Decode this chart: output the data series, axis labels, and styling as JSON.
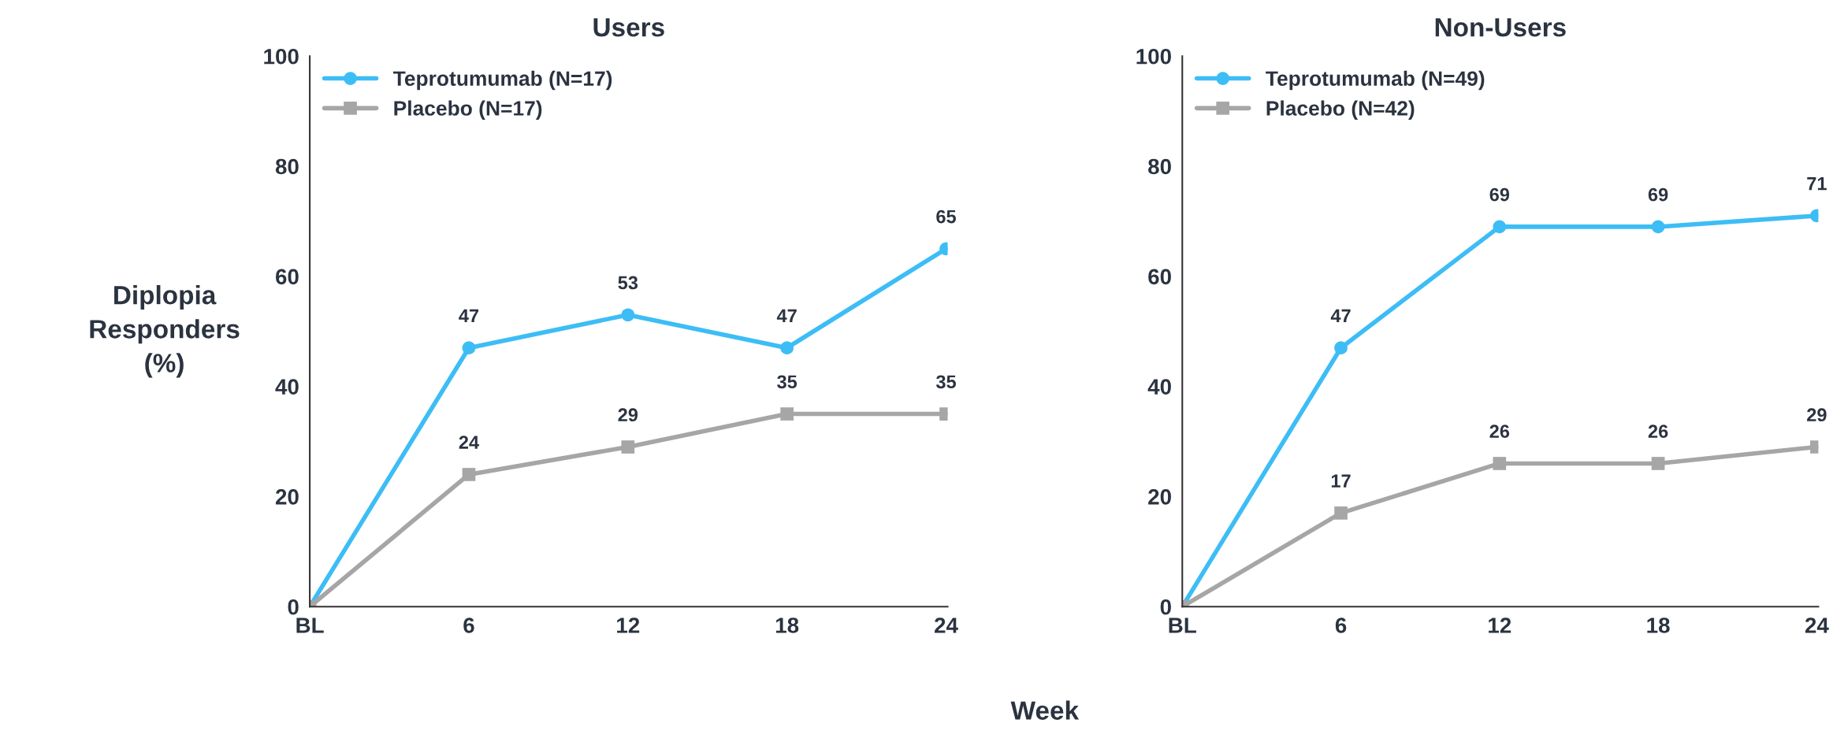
{
  "chart_data": [
    {
      "type": "line",
      "title": "Users",
      "ylabel": "Diplopia\nResponders\n(%)",
      "xlabel": "Week",
      "categories": [
        "BL",
        "6",
        "12",
        "18",
        "24"
      ],
      "ylim": [
        0,
        100
      ],
      "yticks": [
        0,
        20,
        40,
        60,
        80,
        100
      ],
      "legend": "top left",
      "grid": false,
      "series": [
        {
          "name": "Teprotumumab (N=17)",
          "color": "#3dbdf5",
          "marker": "circle",
          "values": [
            0,
            47,
            53,
            47,
            65
          ],
          "value_labels": [
            null,
            "47",
            "53",
            "47",
            "65"
          ]
        },
        {
          "name": "Placebo (N=17)",
          "color": "#a6a6a6",
          "marker": "square",
          "values": [
            0,
            24,
            29,
            35,
            35
          ],
          "value_labels": [
            null,
            "24",
            "29",
            "35",
            "35"
          ]
        }
      ]
    },
    {
      "type": "line",
      "title": "Non-Users",
      "categories": [
        "BL",
        "6",
        "12",
        "18",
        "24"
      ],
      "ylim": [
        0,
        100
      ],
      "yticks": [
        0,
        20,
        40,
        60,
        80,
        100
      ],
      "legend": "top left",
      "grid": false,
      "series": [
        {
          "name": "Teprotumumab (N=49)",
          "color": "#3dbdf5",
          "marker": "circle",
          "values": [
            0,
            47,
            69,
            69,
            71
          ],
          "value_labels": [
            null,
            "47",
            "69",
            "69",
            "71"
          ]
        },
        {
          "name": "Placebo (N=42)",
          "color": "#a6a6a6",
          "marker": "square",
          "values": [
            0,
            17,
            26,
            26,
            29
          ],
          "value_labels": [
            null,
            "17",
            "26",
            "26",
            "29"
          ]
        }
      ]
    }
  ]
}
